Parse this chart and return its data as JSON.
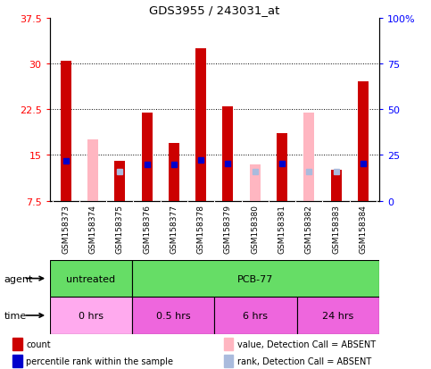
{
  "title": "GDS3955 / 243031_at",
  "samples": [
    "GSM158373",
    "GSM158374",
    "GSM158375",
    "GSM158376",
    "GSM158377",
    "GSM158378",
    "GSM158379",
    "GSM158380",
    "GSM158381",
    "GSM158382",
    "GSM158383",
    "GSM158384"
  ],
  "count_values": [
    30.5,
    null,
    14.0,
    22.0,
    17.0,
    32.5,
    23.0,
    null,
    18.5,
    null,
    12.5,
    27.0
  ],
  "count_absent": [
    null,
    17.5,
    null,
    null,
    null,
    null,
    null,
    13.5,
    null,
    22.0,
    null,
    null
  ],
  "rank_values": [
    22.0,
    null,
    null,
    20.0,
    20.0,
    22.5,
    20.5,
    null,
    20.5,
    null,
    null,
    20.5
  ],
  "rank_absent": [
    null,
    null,
    16.0,
    null,
    null,
    null,
    null,
    16.0,
    null,
    16.0,
    16.0,
    null
  ],
  "ylim": [
    7.5,
    37.5
  ],
  "yticks": [
    7.5,
    15.0,
    22.5,
    30.0,
    37.5
  ],
  "y2lim": [
    0,
    100
  ],
  "y2ticks": [
    0,
    25,
    50,
    75,
    100
  ],
  "y2labels": [
    "0",
    "25",
    "50",
    "75",
    "100%"
  ],
  "bar_width": 0.4,
  "count_color": "#CC0000",
  "count_absent_color": "#FFB6C1",
  "rank_color": "#0000CC",
  "rank_absent_color": "#AABBDD",
  "plot_bg": "#FFFFFF",
  "xtick_bg": "#C8C8C8",
  "agent_groups": [
    {
      "label": "untreated",
      "start": 0,
      "end": 3,
      "color": "#66DD66"
    },
    {
      "label": "PCB-77",
      "start": 3,
      "end": 12,
      "color": "#66DD66"
    }
  ],
  "time_groups": [
    {
      "label": "0 hrs",
      "start": 0,
      "end": 3,
      "color": "#FFAAEE"
    },
    {
      "label": "0.5 hrs",
      "start": 3,
      "end": 6,
      "color": "#EE66DD"
    },
    {
      "label": "6 hrs",
      "start": 6,
      "end": 9,
      "color": "#EE66DD"
    },
    {
      "label": "24 hrs",
      "start": 9,
      "end": 12,
      "color": "#EE66DD"
    }
  ],
  "legend": [
    {
      "label": "count",
      "color": "#CC0000",
      "type": "rect"
    },
    {
      "label": "percentile rank within the sample",
      "color": "#0000CC",
      "type": "rect"
    },
    {
      "label": "value, Detection Call = ABSENT",
      "color": "#FFB6C1",
      "type": "rect"
    },
    {
      "label": "rank, Detection Call = ABSENT",
      "color": "#AABBDD",
      "type": "rect"
    }
  ]
}
